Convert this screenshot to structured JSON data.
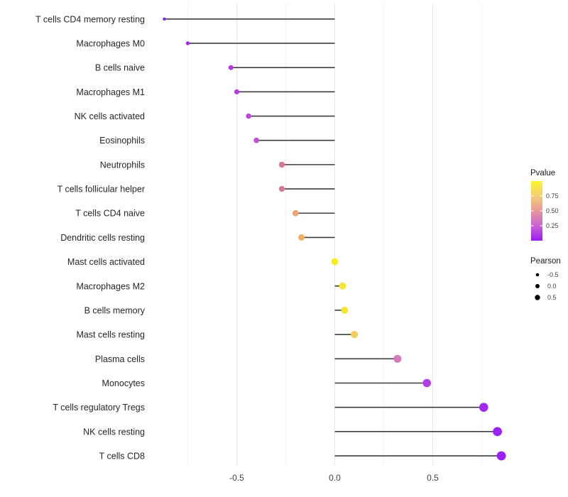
{
  "chart_data": {
    "type": "lollipop",
    "title": "",
    "xlabel": "",
    "ylabel": "",
    "x_tick_labels": [
      "-0.5",
      "0.0",
      "0.5"
    ],
    "x_tick_values": [
      -0.5,
      0.0,
      0.5
    ],
    "x_minor_gridlines": [
      -0.75,
      -0.25,
      0.25,
      0.75
    ],
    "x_range": [
      -0.95,
      0.93
    ],
    "grid": "vertical-only",
    "segment_color": "#3d3d3d",
    "rows": [
      {
        "label": "T cells CD4 memory resting",
        "pearson": -0.87,
        "pvalue_est": 0.03,
        "color": "#7F2BE0"
      },
      {
        "label": "Macrophages M0",
        "pearson": -0.75,
        "pvalue_est": 0.07,
        "color": "#9C2DE2"
      },
      {
        "label": "B cells naive",
        "pearson": -0.53,
        "pvalue_est": 0.15,
        "color": "#B438E4"
      },
      {
        "label": "Macrophages M1",
        "pearson": -0.5,
        "pvalue_est": 0.16,
        "color": "#B83CE1"
      },
      {
        "label": "NK cells activated",
        "pearson": -0.44,
        "pvalue_est": 0.19,
        "color": "#BD44DC"
      },
      {
        "label": "Eosinophils",
        "pearson": -0.4,
        "pvalue_est": 0.21,
        "color": "#C14ED5"
      },
      {
        "label": "Neutrophils",
        "pearson": -0.27,
        "pvalue_est": 0.42,
        "color": "#D5789B"
      },
      {
        "label": "T cells follicular helper",
        "pearson": -0.27,
        "pvalue_est": 0.42,
        "color": "#D5789B"
      },
      {
        "label": "T cells CD4 naive",
        "pearson": -0.2,
        "pvalue_est": 0.6,
        "color": "#ECA573"
      },
      {
        "label": "Dendritic cells resting",
        "pearson": -0.17,
        "pvalue_est": 0.63,
        "color": "#EFAC63"
      },
      {
        "label": "Mast cells activated",
        "pearson": 0.0,
        "pvalue_est": 0.93,
        "color": "#F9EE16"
      },
      {
        "label": "Macrophages M2",
        "pearson": 0.04,
        "pvalue_est": 0.88,
        "color": "#F8E62C"
      },
      {
        "label": "B cells memory",
        "pearson": 0.05,
        "pvalue_est": 0.88,
        "color": "#F8E62C"
      },
      {
        "label": "Mast cells resting",
        "pearson": 0.1,
        "pvalue_est": 0.76,
        "color": "#F4CC5C"
      },
      {
        "label": "Plasma cells",
        "pearson": 0.32,
        "pvalue_est": 0.31,
        "color": "#D678BE"
      },
      {
        "label": "Monocytes",
        "pearson": 0.47,
        "pvalue_est": 0.17,
        "color": "#B23FE5"
      },
      {
        "label": "T cells regulatory  Tregs",
        "pearson": 0.76,
        "pvalue_est": 0.1,
        "color": "#A228F0"
      },
      {
        "label": "NK cells resting",
        "pearson": 0.83,
        "pvalue_est": 0.06,
        "color": "#9B21F4"
      },
      {
        "label": "T cells CD8",
        "pearson": 0.85,
        "pvalue_est": 0.05,
        "color": "#9920F6"
      }
    ],
    "legend_pvalue": {
      "title": "Pvalue",
      "tick_labels": [
        "0.75",
        "0.50",
        "0.25"
      ],
      "tick_values": [
        0.75,
        0.5,
        0.25
      ],
      "range": [
        0,
        1
      ],
      "gradient_top_to_bottom": [
        "#FBF62B",
        "#F3CE74",
        "#E5989C",
        "#C763D2",
        "#9C1CF4"
      ]
    },
    "legend_pearson": {
      "title": "Pearson",
      "labels": [
        "-0.5",
        "0.0",
        "0.5"
      ],
      "values": [
        -0.5,
        0.0,
        0.5
      ]
    }
  }
}
